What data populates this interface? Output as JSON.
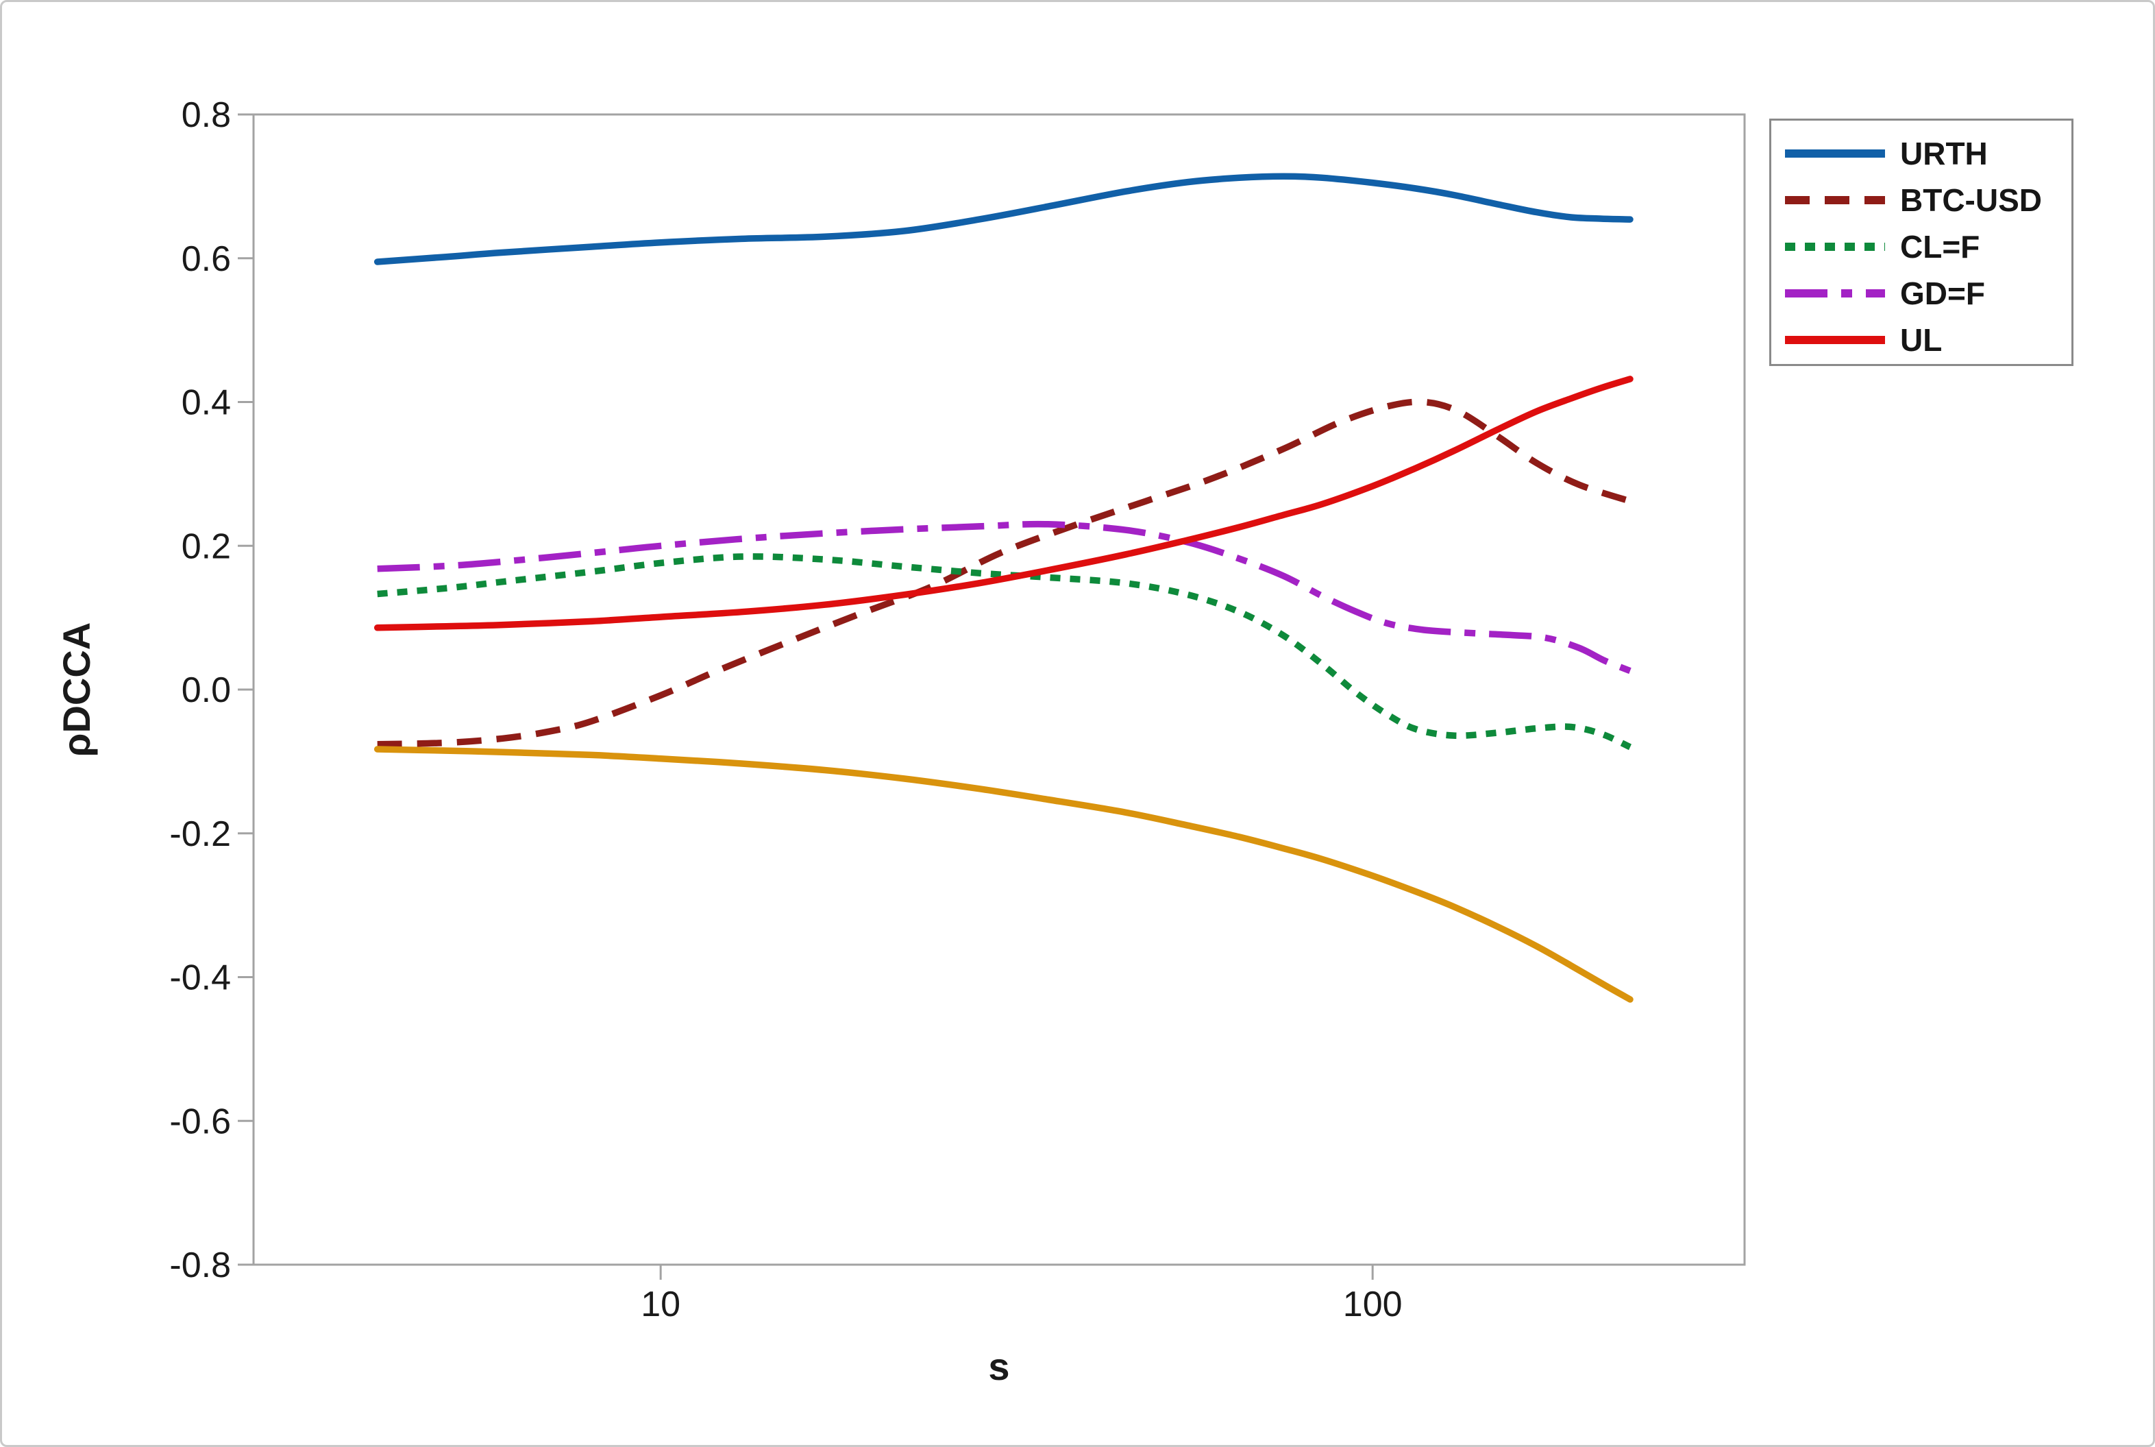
{
  "chart_data": {
    "type": "line",
    "title": "",
    "xlabel": "s",
    "ylabel": "ρDCCA",
    "x_scale": "log10",
    "xlim": [
      2.68,
      333
    ],
    "ylim": [
      -0.8,
      0.8
    ],
    "grid": false,
    "legend_position": "outside-top-right",
    "x_ticks": [
      {
        "label": "10",
        "value": 10
      },
      {
        "label": "100",
        "value": 100
      }
    ],
    "y_ticks": [
      {
        "label": "0.8",
        "value": 0.8
      },
      {
        "label": "0.6",
        "value": 0.6
      },
      {
        "label": "0.4",
        "value": 0.4
      },
      {
        "label": "0.2",
        "value": 0.2
      },
      {
        "label": "0.0",
        "value": 0.0
      },
      {
        "label": "-0.2",
        "value": -0.2
      },
      {
        "label": "-0.4",
        "value": -0.4
      },
      {
        "label": "-0.6",
        "value": -0.6
      },
      {
        "label": "-0.8",
        "value": -0.8
      }
    ],
    "series": [
      {
        "name": "URTH",
        "color": "#1160A8",
        "line_style": "solid",
        "in_legend": true,
        "points": [
          [
            4,
            0.595
          ],
          [
            5,
            0.602
          ],
          [
            6,
            0.608
          ],
          [
            8,
            0.616
          ],
          [
            10,
            0.622
          ],
          [
            13,
            0.627
          ],
          [
            17,
            0.63
          ],
          [
            22,
            0.638
          ],
          [
            28,
            0.654
          ],
          [
            35,
            0.672
          ],
          [
            45,
            0.693
          ],
          [
            55,
            0.706
          ],
          [
            65,
            0.712
          ],
          [
            75,
            0.714
          ],
          [
            85,
            0.712
          ],
          [
            100,
            0.705
          ],
          [
            115,
            0.697
          ],
          [
            130,
            0.688
          ],
          [
            150,
            0.675
          ],
          [
            170,
            0.664
          ],
          [
            190,
            0.657
          ],
          [
            210,
            0.655
          ],
          [
            230,
            0.654
          ]
        ]
      },
      {
        "name": "BTC-USD",
        "color": "#8F1C17",
        "line_style": "dashed",
        "in_legend": true,
        "points": [
          [
            4,
            -0.076
          ],
          [
            5,
            -0.074
          ],
          [
            6,
            -0.068
          ],
          [
            7,
            -0.058
          ],
          [
            8,
            -0.044
          ],
          [
            10,
            -0.008
          ],
          [
            12,
            0.026
          ],
          [
            15,
            0.065
          ],
          [
            19,
            0.105
          ],
          [
            24,
            0.143
          ],
          [
            30,
            0.19
          ],
          [
            38,
            0.228
          ],
          [
            48,
            0.262
          ],
          [
            60,
            0.295
          ],
          [
            75,
            0.335
          ],
          [
            90,
            0.372
          ],
          [
            105,
            0.394
          ],
          [
            118,
            0.4
          ],
          [
            132,
            0.387
          ],
          [
            150,
            0.352
          ],
          [
            170,
            0.315
          ],
          [
            195,
            0.285
          ],
          [
            230,
            0.262
          ]
        ]
      },
      {
        "name": "CL=F",
        "color": "#0E8A3B",
        "line_style": "dotted",
        "in_legend": true,
        "points": [
          [
            4,
            0.133
          ],
          [
            5,
            0.141
          ],
          [
            6,
            0.15
          ],
          [
            8,
            0.164
          ],
          [
            10,
            0.176
          ],
          [
            13,
            0.185
          ],
          [
            17,
            0.181
          ],
          [
            22,
            0.171
          ],
          [
            28,
            0.162
          ],
          [
            35,
            0.156
          ],
          [
            45,
            0.148
          ],
          [
            55,
            0.132
          ],
          [
            65,
            0.108
          ],
          [
            75,
            0.075
          ],
          [
            85,
            0.035
          ],
          [
            95,
            -0.005
          ],
          [
            105,
            -0.035
          ],
          [
            115,
            -0.055
          ],
          [
            130,
            -0.064
          ],
          [
            150,
            -0.06
          ],
          [
            170,
            -0.054
          ],
          [
            190,
            -0.052
          ],
          [
            210,
            -0.062
          ],
          [
            230,
            -0.08
          ]
        ]
      },
      {
        "name": "GD=F",
        "color": "#A322C5",
        "line_style": "dash-dot",
        "in_legend": true,
        "points": [
          [
            4,
            0.168
          ],
          [
            5,
            0.172
          ],
          [
            6,
            0.178
          ],
          [
            8,
            0.19
          ],
          [
            10,
            0.2
          ],
          [
            14,
            0.212
          ],
          [
            20,
            0.221
          ],
          [
            28,
            0.227
          ],
          [
            35,
            0.23
          ],
          [
            45,
            0.222
          ],
          [
            55,
            0.205
          ],
          [
            65,
            0.182
          ],
          [
            75,
            0.158
          ],
          [
            85,
            0.13
          ],
          [
            95,
            0.108
          ],
          [
            105,
            0.092
          ],
          [
            118,
            0.083
          ],
          [
            135,
            0.079
          ],
          [
            155,
            0.076
          ],
          [
            175,
            0.072
          ],
          [
            195,
            0.058
          ],
          [
            212,
            0.04
          ],
          [
            230,
            0.026
          ]
        ]
      },
      {
        "name": "UL",
        "color": "#DE0E0E",
        "line_style": "solid",
        "in_legend": true,
        "points": [
          [
            4,
            0.086
          ],
          [
            5,
            0.088
          ],
          [
            6,
            0.09
          ],
          [
            8,
            0.095
          ],
          [
            10,
            0.101
          ],
          [
            13,
            0.108
          ],
          [
            17,
            0.118
          ],
          [
            22,
            0.132
          ],
          [
            28,
            0.148
          ],
          [
            35,
            0.166
          ],
          [
            45,
            0.188
          ],
          [
            55,
            0.208
          ],
          [
            65,
            0.226
          ],
          [
            75,
            0.243
          ],
          [
            85,
            0.258
          ],
          [
            100,
            0.283
          ],
          [
            115,
            0.308
          ],
          [
            130,
            0.332
          ],
          [
            150,
            0.362
          ],
          [
            170,
            0.387
          ],
          [
            190,
            0.405
          ],
          [
            210,
            0.42
          ],
          [
            230,
            0.432
          ]
        ]
      },
      {
        "name": "",
        "color": "#D9930D",
        "line_style": "solid",
        "in_legend": false,
        "points": [
          [
            4,
            -0.083
          ],
          [
            5,
            -0.085
          ],
          [
            6,
            -0.087
          ],
          [
            8,
            -0.091
          ],
          [
            10,
            -0.096
          ],
          [
            13,
            -0.103
          ],
          [
            17,
            -0.112
          ],
          [
            22,
            -0.124
          ],
          [
            28,
            -0.138
          ],
          [
            35,
            -0.153
          ],
          [
            45,
            -0.171
          ],
          [
            55,
            -0.189
          ],
          [
            65,
            -0.205
          ],
          [
            75,
            -0.221
          ],
          [
            85,
            -0.236
          ],
          [
            100,
            -0.259
          ],
          [
            115,
            -0.281
          ],
          [
            130,
            -0.302
          ],
          [
            150,
            -0.33
          ],
          [
            170,
            -0.357
          ],
          [
            190,
            -0.384
          ],
          [
            210,
            -0.409
          ],
          [
            230,
            -0.431
          ]
        ]
      }
    ],
    "frame_color": "#A3A3A3",
    "text_color": "#1A1A1A"
  }
}
